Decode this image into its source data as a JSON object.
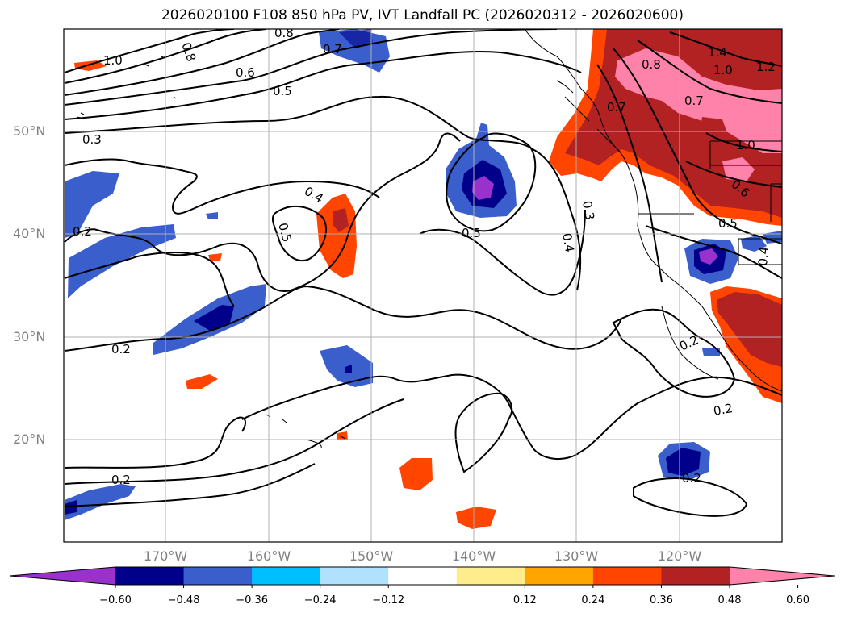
{
  "title": "2026020100 F108 850 hPa PV, IVT Landfall PC (2026020312 - 2026020600)",
  "lat_labels": [
    "50°N",
    "40°N",
    "30°N",
    "20°N"
  ],
  "lon_labels": [
    "170°W",
    "160°W",
    "150°W",
    "140°W",
    "130°W",
    "120°W"
  ],
  "colorbar": {
    "colors": [
      "#9932CC",
      "#00008B",
      "#3A5FCD",
      "#00BFFF",
      "#B0E2FF",
      "#FFFFFF",
      "#FFEC8B",
      "#FFA500",
      "#FF4500",
      "#B22222",
      "#FF82AB"
    ],
    "tick_labels": [
      "−0.60",
      "−0.48",
      "−0.36",
      "−0.24",
      "−0.12",
      "0.12",
      "0.24",
      "0.36",
      "0.48",
      "0.60"
    ]
  },
  "contour_labels": [
    "1.0",
    "0.8",
    "0.6",
    "0.5",
    "0.3",
    "0.2",
    "0.4",
    "0.5",
    "0.5",
    "0.4",
    "0.3",
    "0.2",
    "0.2",
    "0.2",
    "0.2",
    "1.4",
    "1.0",
    "1.2",
    "0.8",
    "0.7",
    "0.7",
    "1.0",
    "0.6",
    "0.5",
    "0.4",
    "0.2",
    "0.2",
    "0.2",
    "0.8",
    "0.7"
  ]
}
